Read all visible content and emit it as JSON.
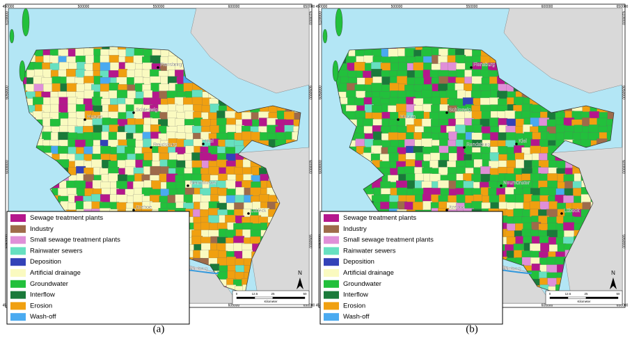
{
  "panels": [
    {
      "caption": "(a)"
    },
    {
      "caption": "(b)"
    }
  ],
  "axes": {
    "x_ticks": [
      "450000",
      "500000",
      "550000",
      "600000",
      "650000"
    ],
    "y_ticks": [
      "6100000",
      "6050000",
      "6000000",
      "5950000"
    ]
  },
  "legend": {
    "items": [
      {
        "name": "Sewage treatment plants",
        "color": "#b5178c"
      },
      {
        "name": "Industry",
        "color": "#9e6b4a"
      },
      {
        "name": "Small sewage treatment plants",
        "color": "#e08fd8"
      },
      {
        "name": "Rainwater sewers",
        "color": "#66e0c0"
      },
      {
        "name": "Deposition",
        "color": "#3342b8"
      },
      {
        "name": "Artificial drainage",
        "color": "#fafac0"
      },
      {
        "name": "Groundwater",
        "color": "#22c03c"
      },
      {
        "name": "Interflow",
        "color": "#1a7a3a"
      },
      {
        "name": "Erosion",
        "color": "#f0a010"
      },
      {
        "name": "Wash-off",
        "color": "#4aaaf0"
      }
    ]
  },
  "cities": [
    "Flensburg",
    "Husum",
    "Schleswig",
    "Kiel",
    "Rendsburg",
    "Neumünster",
    "Itzehoe",
    "Lübeck",
    "Hamburg"
  ],
  "scale_bar": {
    "labels": [
      "0",
      "12.5",
      "25",
      "50"
    ],
    "unit": "Kilometer"
  },
  "north": "N"
}
